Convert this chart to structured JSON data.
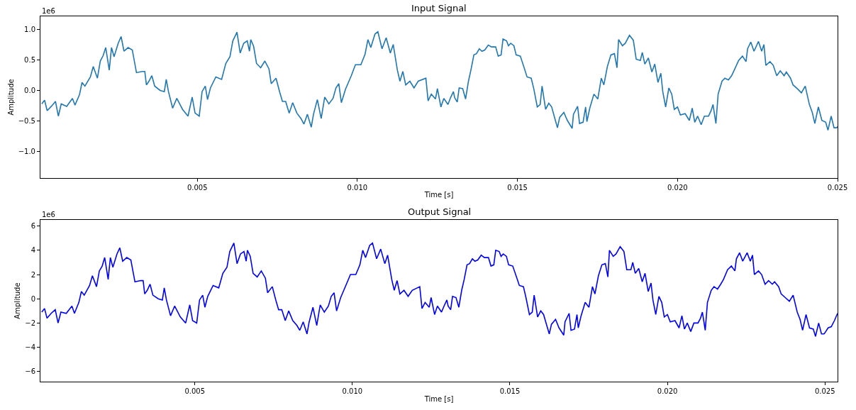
{
  "chart_data": [
    {
      "type": "line",
      "title": "Input Signal",
      "xlabel": "Time [s]",
      "ylabel": "Amplitude",
      "annotations": [
        "1e6"
      ],
      "color": "#1f77b4",
      "xlim": [
        0.0001,
        0.025
      ],
      "xticks": [
        {
          "value": 0.005,
          "label": "0.005"
        },
        {
          "value": 0.01,
          "label": "0.010"
        },
        {
          "value": 0.015,
          "label": "0.015"
        },
        {
          "value": 0.02,
          "label": "0.020"
        },
        {
          "value": 0.025,
          "label": "0.025"
        }
      ],
      "ylim": [
        -1.43,
        1.21
      ],
      "yticks": [
        {
          "value": -1,
          "label": "−1.0"
        },
        {
          "value": -0.5,
          "label": "−0.5"
        },
        {
          "value": 0,
          "label": "0.0"
        },
        {
          "value": 0.5,
          "label": "0.5"
        },
        {
          "value": 1,
          "label": "1.0"
        }
      ],
      "x": [
        0.00014,
        0.00023,
        0.00031,
        0.00044,
        0.00057,
        0.00066,
        0.00075,
        0.00092,
        0.0011,
        0.00118,
        0.00132,
        0.0014,
        0.00149,
        0.00166,
        0.00175,
        0.00188,
        0.00197,
        0.00206,
        0.00214,
        0.00225,
        0.00232,
        0.0024,
        0.00253,
        0.00262,
        0.00271,
        0.00284,
        0.00297,
        0.0031,
        0.00328,
        0.00336,
        0.00341,
        0.00349,
        0.00358,
        0.00367,
        0.00384,
        0.00397,
        0.00403,
        0.0041,
        0.00423,
        0.00436,
        0.00454,
        0.00471,
        0.00484,
        0.00493,
        0.00506,
        0.00515,
        0.00525,
        0.00532,
        0.00541,
        0.00558,
        0.00576,
        0.00589,
        0.00602,
        0.00611,
        0.00624,
        0.00634,
        0.00645,
        0.00656,
        0.00663,
        0.00667,
        0.00676,
        0.00685,
        0.00698,
        0.00711,
        0.00724,
        0.00731,
        0.00746,
        0.00757,
        0.00766,
        0.00776,
        0.00787,
        0.00798,
        0.00811,
        0.00824,
        0.00833,
        0.00844,
        0.00856,
        0.00863,
        0.00875,
        0.00887,
        0.00898,
        0.00911,
        0.00924,
        0.00933,
        0.00942,
        0.0095,
        0.00963,
        0.00981,
        0.00994,
        0.01011,
        0.01024,
        0.01033,
        0.01042,
        0.01055,
        0.01064,
        0.01077,
        0.0109,
        0.01103,
        0.01112,
        0.01125,
        0.01133,
        0.01142,
        0.01151,
        0.01164,
        0.01177,
        0.0119,
        0.01214,
        0.01221,
        0.01231,
        0.01244,
        0.0125,
        0.01261,
        0.0127,
        0.01283,
        0.01291,
        0.013,
        0.01304,
        0.01312,
        0.01318,
        0.01329,
        0.01338,
        0.01347,
        0.01355,
        0.01364,
        0.01372,
        0.01381,
        0.01389,
        0.01398,
        0.01409,
        0.01419,
        0.01432,
        0.0144,
        0.01449,
        0.01455,
        0.01466,
        0.01472,
        0.01479,
        0.01489,
        0.01496,
        0.01509,
        0.01521,
        0.0153,
        0.01543,
        0.01551,
        0.01562,
        0.01571,
        0.01577,
        0.01588,
        0.01598,
        0.01607,
        0.01617,
        0.01625,
        0.01632,
        0.01645,
        0.01656,
        0.01671,
        0.01675,
        0.01688,
        0.01694,
        0.01705,
        0.01713,
        0.01717,
        0.01726,
        0.01739,
        0.01751,
        0.01762,
        0.0177,
        0.01781,
        0.01792,
        0.01803,
        0.01811,
        0.01816,
        0.01828,
        0.01837,
        0.0185,
        0.01862,
        0.01871,
        0.01884,
        0.0189,
        0.01898,
        0.01909,
        0.0192,
        0.01929,
        0.01939,
        0.01948,
        0.01954,
        0.01963,
        0.01973,
        0.01982,
        0.0199,
        0.02,
        0.02009,
        0.02024,
        0.02037,
        0.02046,
        0.02054,
        0.02063,
        0.02074,
        0.02084,
        0.02097,
        0.02105,
        0.02111,
        0.0212,
        0.02127,
        0.02139,
        0.02148,
        0.02159,
        0.02169,
        0.02178,
        0.02191,
        0.02203,
        0.02214,
        0.02219,
        0.02229,
        0.02239,
        0.02253,
        0.02263,
        0.0227,
        0.02276,
        0.02289,
        0.02299,
        0.0231,
        0.02321,
        0.02333,
        0.0234,
        0.02353,
        0.02361,
        0.02374,
        0.02387,
        0.02399,
        0.02412,
        0.02421,
        0.02429,
        0.0244,
        0.02451,
        0.02463,
        0.0247,
        0.0248,
        0.02489,
        0.02497,
        0.025
      ],
      "values": [
        -0.22,
        -0.16,
        -0.33,
        -0.26,
        -0.18,
        -0.42,
        -0.22,
        -0.26,
        -0.13,
        -0.24,
        -0.07,
        0.13,
        0.07,
        0.22,
        0.39,
        0.2,
        0.48,
        0.57,
        0.7,
        0.33,
        0.7,
        0.55,
        0.77,
        0.88,
        0.64,
        0.7,
        0.66,
        0.29,
        0.31,
        0.31,
        0.09,
        0.15,
        0.24,
        0.07,
        0.0,
        -0.02,
        0.18,
        -0.02,
        -0.29,
        -0.13,
        -0.31,
        -0.42,
        -0.11,
        -0.37,
        -0.42,
        -0.02,
        0.07,
        -0.15,
        0.04,
        0.22,
        0.18,
        0.44,
        0.55,
        0.81,
        0.95,
        0.61,
        0.77,
        0.81,
        0.64,
        0.83,
        0.72,
        0.44,
        0.37,
        0.48,
        0.35,
        0.11,
        0.2,
        -0.02,
        -0.18,
        -0.18,
        -0.37,
        -0.2,
        -0.37,
        -0.46,
        -0.55,
        -0.39,
        -0.6,
        -0.39,
        -0.15,
        -0.46,
        -0.11,
        -0.22,
        -0.13,
        0.04,
        0.11,
        -0.2,
        0.02,
        0.24,
        0.42,
        0.42,
        0.59,
        0.83,
        0.7,
        0.92,
        0.96,
        0.68,
        0.86,
        0.61,
        0.75,
        0.33,
        0.15,
        0.31,
        0.09,
        0.15,
        0.04,
        0.15,
        0.2,
        -0.17,
        -0.06,
        -0.14,
        0.03,
        -0.27,
        -0.13,
        -0.23,
        -0.12,
        -0.02,
        -0.12,
        -0.19,
        0.04,
        0.03,
        -0.14,
        0.15,
        0.34,
        0.58,
        0.6,
        0.68,
        0.64,
        0.66,
        0.74,
        0.71,
        0.71,
        0.56,
        0.58,
        0.84,
        0.81,
        0.73,
        0.77,
        0.73,
        0.58,
        0.56,
        0.37,
        0.22,
        0.2,
        0.03,
        -0.27,
        -0.23,
        0.07,
        -0.31,
        -0.21,
        -0.27,
        -0.46,
        -0.61,
        -0.44,
        -0.36,
        -0.49,
        -0.62,
        -0.39,
        -0.26,
        -0.54,
        -0.52,
        -0.27,
        -0.51,
        -0.29,
        -0.06,
        -0.14,
        0.2,
        0.09,
        0.39,
        0.58,
        0.6,
        0.37,
        0.83,
        0.73,
        0.77,
        0.9,
        0.82,
        0.51,
        0.49,
        0.62,
        0.43,
        0.53,
        0.3,
        0.43,
        0.13,
        0.28,
        -0.02,
        -0.27,
        0.04,
        -0.06,
        -0.31,
        -0.27,
        -0.4,
        -0.38,
        -0.49,
        -0.29,
        -0.52,
        -0.42,
        -0.56,
        -0.42,
        -0.42,
        -0.33,
        -0.23,
        -0.54,
        -0.06,
        0.15,
        0.2,
        0.17,
        0.24,
        0.34,
        0.49,
        0.56,
        0.47,
        0.68,
        0.79,
        0.64,
        0.8,
        0.64,
        0.75,
        0.41,
        0.47,
        0.41,
        0.24,
        0.32,
        0.24,
        0.3,
        0.2,
        0.09,
        0.03,
        -0.04,
        0.07,
        -0.23,
        -0.36,
        -0.54,
        -0.27,
        -0.49,
        -0.52,
        -0.65,
        -0.42,
        -0.61,
        -0.61,
        -0.59
      ]
    },
    {
      "type": "line",
      "title": "Output Signal",
      "xlabel": "Time [s]",
      "ylabel": "Amplitude",
      "annotations": [
        "1e6"
      ],
      "color": "#0000ff",
      "xlim": [
        0.0001,
        0.0254
      ],
      "xticks": [
        {
          "value": 0.005,
          "label": "0.005"
        },
        {
          "value": 0.01,
          "label": "0.010"
        },
        {
          "value": 0.015,
          "label": "0.015"
        },
        {
          "value": 0.02,
          "label": "0.020"
        },
        {
          "value": 0.025,
          "label": "0.025"
        }
      ],
      "ylim": [
        -6.83,
        6.5
      ],
      "yticks": [
        {
          "value": -6,
          "label": "−6"
        },
        {
          "value": -4,
          "label": "−4"
        },
        {
          "value": -2,
          "label": "−2"
        },
        0,
        2,
        4,
        6
      ],
      "x": [
        0.00014,
        0.00023,
        0.00031,
        0.00044,
        0.00057,
        0.00066,
        0.00075,
        0.00092,
        0.0011,
        0.00118,
        0.00132,
        0.0014,
        0.00149,
        0.00166,
        0.00175,
        0.00188,
        0.00197,
        0.00206,
        0.00214,
        0.00225,
        0.00232,
        0.0024,
        0.00253,
        0.00262,
        0.00271,
        0.00284,
        0.00297,
        0.0031,
        0.00328,
        0.00336,
        0.00341,
        0.00349,
        0.00358,
        0.00367,
        0.00384,
        0.00397,
        0.00403,
        0.0041,
        0.00423,
        0.00436,
        0.00454,
        0.00471,
        0.00484,
        0.00493,
        0.00506,
        0.00515,
        0.00525,
        0.00532,
        0.00541,
        0.00558,
        0.00576,
        0.00589,
        0.00602,
        0.00611,
        0.00624,
        0.00634,
        0.00645,
        0.00656,
        0.00663,
        0.00667,
        0.00676,
        0.00685,
        0.00698,
        0.00711,
        0.00724,
        0.00731,
        0.00746,
        0.00757,
        0.00766,
        0.00776,
        0.00787,
        0.00798,
        0.00811,
        0.00824,
        0.00833,
        0.00844,
        0.00856,
        0.00863,
        0.00875,
        0.00887,
        0.00898,
        0.00911,
        0.00924,
        0.00933,
        0.00942,
        0.0095,
        0.00963,
        0.00981,
        0.00994,
        0.01011,
        0.01024,
        0.01033,
        0.01042,
        0.01055,
        0.01064,
        0.01077,
        0.0109,
        0.01103,
        0.01112,
        0.01125,
        0.01133,
        0.01142,
        0.01151,
        0.01164,
        0.01177,
        0.0119,
        0.01214,
        0.01221,
        0.01231,
        0.01244,
        0.0125,
        0.01261,
        0.0127,
        0.01283,
        0.01291,
        0.013,
        0.01304,
        0.01312,
        0.01318,
        0.01329,
        0.01338,
        0.01347,
        0.01355,
        0.01364,
        0.01372,
        0.01381,
        0.01389,
        0.01398,
        0.01409,
        0.01419,
        0.01432,
        0.0144,
        0.01449,
        0.01455,
        0.01466,
        0.01472,
        0.01479,
        0.01489,
        0.01496,
        0.01509,
        0.01521,
        0.0153,
        0.01543,
        0.01551,
        0.01562,
        0.01571,
        0.01577,
        0.01588,
        0.01598,
        0.01607,
        0.01617,
        0.01625,
        0.01632,
        0.01645,
        0.01656,
        0.01671,
        0.01675,
        0.01688,
        0.01694,
        0.01705,
        0.01713,
        0.01717,
        0.01726,
        0.01739,
        0.01751,
        0.01762,
        0.0177,
        0.01781,
        0.01792,
        0.01803,
        0.01811,
        0.01816,
        0.01828,
        0.01837,
        0.0185,
        0.01862,
        0.01871,
        0.01884,
        0.0189,
        0.01898,
        0.01909,
        0.0192,
        0.01929,
        0.01939,
        0.01948,
        0.01954,
        0.01963,
        0.01973,
        0.01982,
        0.0199,
        0.02,
        0.02009,
        0.02024,
        0.02037,
        0.02046,
        0.02054,
        0.02063,
        0.02074,
        0.02084,
        0.02097,
        0.02105,
        0.02111,
        0.0212,
        0.02127,
        0.02139,
        0.02148,
        0.02159,
        0.02169,
        0.02178,
        0.02191,
        0.02203,
        0.02214,
        0.02219,
        0.02229,
        0.02239,
        0.02253,
        0.02263,
        0.0227,
        0.02276,
        0.02289,
        0.02299,
        0.0231,
        0.02321,
        0.02333,
        0.0234,
        0.02353,
        0.02361,
        0.02374,
        0.02387,
        0.02399,
        0.02412,
        0.02421,
        0.02429,
        0.0244,
        0.02451,
        0.02463,
        0.0247,
        0.0248,
        0.02489,
        0.02497,
        0.025,
        0.0251,
        0.0252,
        0.0253,
        0.0254
      ],
      "values": [
        -1.1,
        -0.8,
        -1.6,
        -1.2,
        -0.9,
        -2.0,
        -1.1,
        -1.2,
        -0.6,
        -1.2,
        -0.3,
        0.6,
        0.3,
        1.1,
        1.9,
        1.0,
        2.3,
        2.7,
        3.4,
        1.6,
        3.4,
        2.6,
        3.7,
        4.2,
        3.1,
        3.4,
        3.2,
        1.4,
        1.5,
        1.5,
        0.4,
        0.7,
        1.2,
        0.3,
        0.0,
        -0.1,
        0.9,
        -0.1,
        -1.4,
        -0.6,
        -1.5,
        -2.0,
        -0.5,
        -1.8,
        -2.0,
        -0.1,
        0.3,
        -0.7,
        0.2,
        1.1,
        0.9,
        2.1,
        2.6,
        3.9,
        4.6,
        2.9,
        3.7,
        3.9,
        3.1,
        4.0,
        3.5,
        2.1,
        1.8,
        2.3,
        1.7,
        0.5,
        1.0,
        -0.1,
        -0.9,
        -0.9,
        -1.8,
        -1.0,
        -1.8,
        -2.2,
        -2.6,
        -1.9,
        -2.9,
        -1.9,
        -0.7,
        -2.2,
        -0.5,
        -1.1,
        -0.6,
        0.2,
        0.5,
        -1.0,
        0.1,
        1.2,
        2.0,
        2.0,
        2.8,
        4.0,
        3.4,
        4.4,
        4.6,
        3.3,
        4.1,
        2.9,
        3.6,
        1.6,
        0.7,
        1.5,
        0.4,
        0.7,
        0.2,
        0.7,
        1.0,
        -0.8,
        -0.3,
        -0.7,
        0.1,
        -1.3,
        -0.6,
        -1.1,
        -0.6,
        -0.1,
        -0.6,
        -0.9,
        0.2,
        0.1,
        -0.7,
        0.7,
        1.6,
        2.8,
        2.9,
        3.3,
        3.1,
        3.2,
        3.6,
        3.4,
        3.4,
        2.7,
        2.8,
        4.0,
        3.9,
        3.5,
        3.7,
        3.5,
        2.8,
        2.7,
        1.8,
        1.1,
        1.0,
        0.1,
        -1.3,
        -1.1,
        0.3,
        -1.5,
        -1.0,
        -1.3,
        -2.2,
        -2.9,
        -2.1,
        -1.7,
        -2.4,
        -3.0,
        -1.9,
        -1.2,
        -2.6,
        -2.5,
        -1.3,
        -2.4,
        -1.4,
        -0.3,
        -0.7,
        1.0,
        0.4,
        1.9,
        2.8,
        2.9,
        1.8,
        4.0,
        3.5,
        3.7,
        4.3,
        3.9,
        2.4,
        2.4,
        3.0,
        2.1,
        2.5,
        1.4,
        2.1,
        0.6,
        1.3,
        -0.1,
        -1.3,
        0.2,
        -0.3,
        -1.5,
        -1.3,
        -1.9,
        -1.8,
        -2.4,
        -1.4,
        -2.5,
        -2.0,
        -2.7,
        -2.0,
        -2.0,
        -1.6,
        -1.1,
        -2.6,
        -0.3,
        0.7,
        1.0,
        0.8,
        1.2,
        1.6,
        2.4,
        2.7,
        2.3,
        3.3,
        3.8,
        3.1,
        3.8,
        3.1,
        3.6,
        2.0,
        2.3,
        2.0,
        1.2,
        1.5,
        1.2,
        1.4,
        1.0,
        0.4,
        0.1,
        -0.2,
        0.3,
        -1.1,
        -1.7,
        -2.6,
        -1.3,
        -2.4,
        -2.5,
        -3.1,
        -2.0,
        -2.9,
        -2.9,
        -2.8,
        -2.4,
        -2.3,
        -1.8,
        -1.2
      ]
    }
  ]
}
